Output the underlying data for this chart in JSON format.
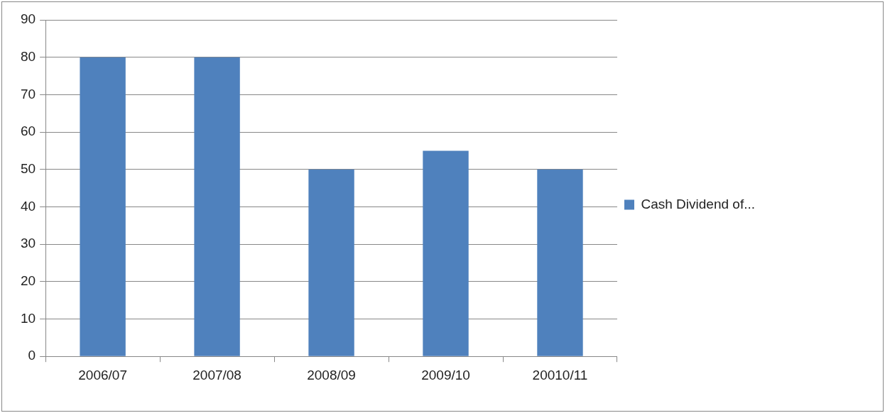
{
  "chart_data": {
    "type": "bar",
    "categories": [
      "2006/07",
      "2007/08",
      "2008/09",
      "2009/10",
      "20010/11"
    ],
    "series": [
      {
        "name": "Cash Dividend of...",
        "color": "#4f81bd",
        "values": [
          80,
          80,
          50,
          55,
          50
        ]
      }
    ],
    "ylim": [
      0,
      90
    ],
    "yticks": [
      0,
      10,
      20,
      30,
      40,
      50,
      60,
      70,
      80,
      90
    ],
    "grid": "y",
    "legend": "right"
  }
}
